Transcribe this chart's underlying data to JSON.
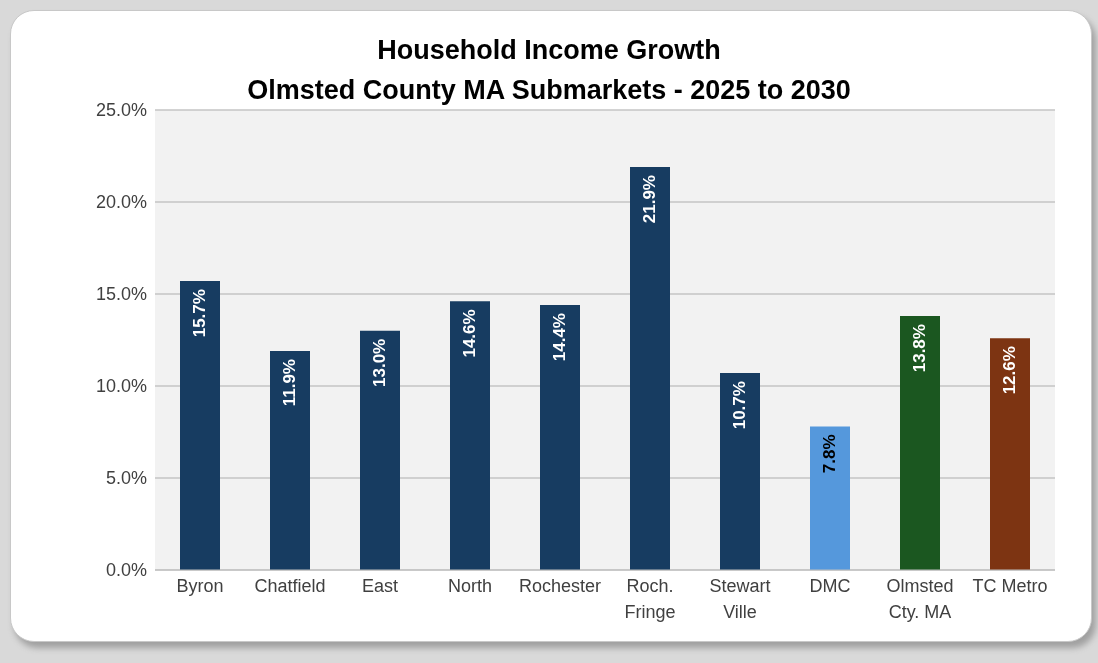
{
  "chart_data": {
    "type": "bar",
    "title": "Household Income Growth\nOlmsted County MA Submarkets  - 2025 to 2030",
    "categories": [
      "Byron",
      "Chatfield",
      "East",
      "North",
      "Rochester",
      "Roch. Fringe",
      "Stewart Ville",
      "DMC",
      "Olmsted Cty. MA",
      "TC Metro"
    ],
    "values": [
      15.7,
      11.9,
      13.0,
      14.6,
      14.4,
      21.9,
      10.7,
      7.8,
      13.8,
      12.6
    ],
    "value_labels": [
      "15.7%",
      "11.9%",
      "13.0%",
      "14.6%",
      "14.4%",
      "21.9%",
      "10.7%",
      "7.8%",
      "13.8%",
      "12.6%"
    ],
    "colors": [
      "#173c61",
      "#173c61",
      "#173c61",
      "#173c61",
      "#173c61",
      "#173c61",
      "#173c61",
      "#5598dc",
      "#1b5720",
      "#7d3412"
    ],
    "ylim": [
      0,
      25
    ],
    "yticks": [
      {
        "value": 0,
        "label": "0.0%"
      },
      {
        "value": 5,
        "label": "5.0%"
      },
      {
        "value": 10,
        "label": "10.0%"
      },
      {
        "value": 15,
        "label": "15.0%"
      },
      {
        "value": 20,
        "label": "20.0%"
      },
      {
        "value": 25,
        "label": "25.0%"
      }
    ],
    "grid": "y"
  }
}
